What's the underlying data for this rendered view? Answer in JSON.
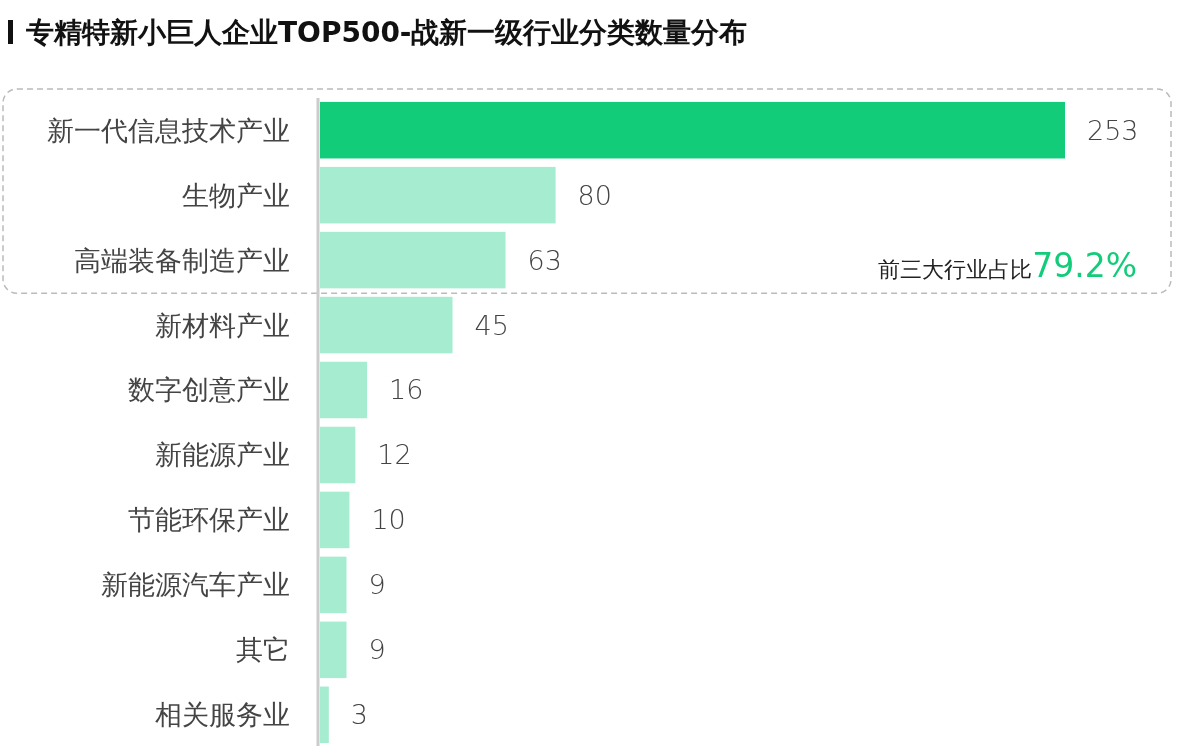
{
  "chart_data": {
    "type": "bar",
    "orientation": "horizontal",
    "title": "专精特新小巨人企业TOP500-战新一级行业分类数量分布",
    "categories": [
      "新一代信息技术产业",
      "生物产业",
      "高端装备制造产业",
      "新材料产业",
      "数字创意产业",
      "新能源产业",
      "节能环保产业",
      "新能源汽车产业",
      "其它",
      "相关服务业"
    ],
    "values": [
      253,
      80,
      63,
      45,
      16,
      12,
      10,
      9,
      9,
      3
    ],
    "colors": [
      "#12cc7a",
      "#a6ecd0",
      "#a6ecd0",
      "#a6ecd0",
      "#a6ecd0",
      "#a6ecd0",
      "#a6ecd0",
      "#a6ecd0",
      "#a6ecd0",
      "#a6ecd0"
    ],
    "data_labels": true,
    "annotations": [
      "前三大行业占比",
      "79.2%"
    ]
  }
}
